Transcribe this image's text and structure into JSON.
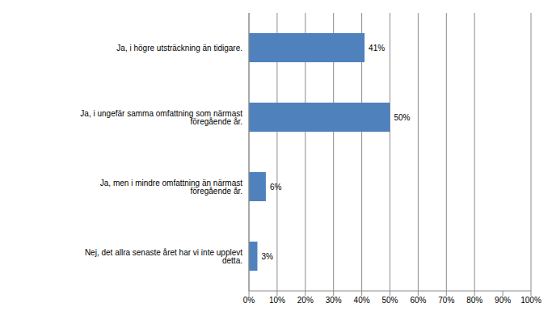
{
  "chart_data": {
    "type": "bar",
    "orientation": "horizontal",
    "categories": [
      "Ja, i högre utsträckning än tidigare.",
      "Ja, i ungefär samma omfattning som närmast föregående år.",
      "Ja, men i mindre omfattning än närmast föregående år.",
      "Nej, det allra senaste året har vi inte upplevt detta."
    ],
    "values": [
      41,
      50,
      6,
      3
    ],
    "value_labels": [
      "41%",
      "50%",
      "6%",
      "3%"
    ],
    "data_labels": true,
    "color": "#4f81bd",
    "xlim": [
      0,
      100
    ],
    "xticks": [
      {
        "value": 0,
        "label": "0%"
      },
      {
        "value": 10,
        "label": "10%"
      },
      {
        "value": 20,
        "label": "20%"
      },
      {
        "value": 30,
        "label": "30%"
      },
      {
        "value": 40,
        "label": "40%"
      },
      {
        "value": 50,
        "label": "50%"
      },
      {
        "value": 60,
        "label": "60%"
      },
      {
        "value": 70,
        "label": "70%"
      },
      {
        "value": 80,
        "label": "80%"
      },
      {
        "value": 90,
        "label": "90%"
      },
      {
        "value": 100,
        "label": "100%"
      }
    ],
    "grid": true
  }
}
